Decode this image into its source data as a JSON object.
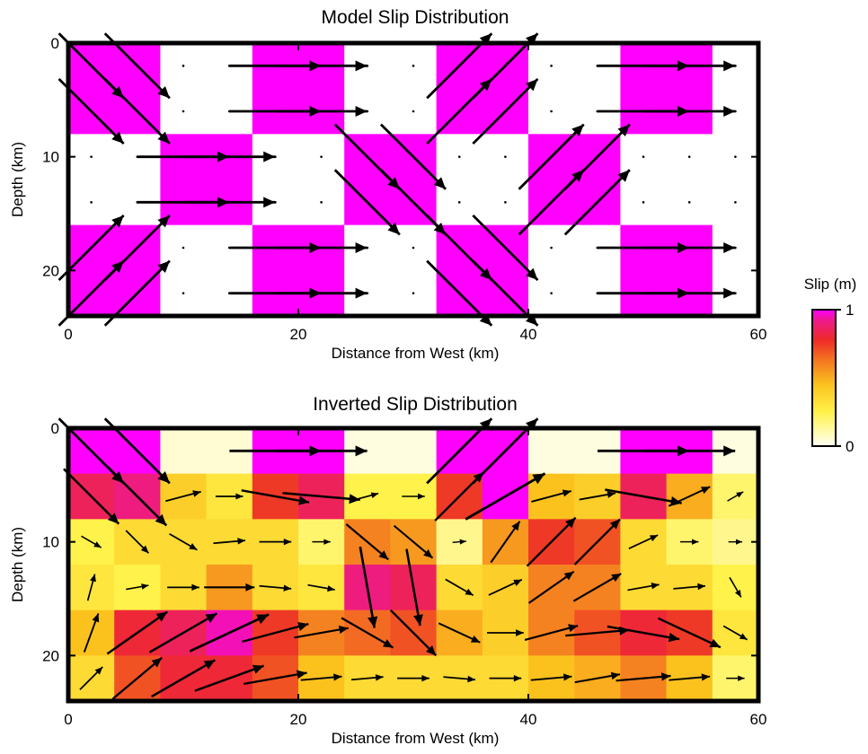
{
  "chart_data": [
    {
      "type": "heatmap",
      "title": "Model Slip Distribution",
      "xlabel": "Distance from West (km)",
      "ylabel": "Depth (km)",
      "xlim": [
        0,
        60
      ],
      "ylim": [
        0,
        24
      ],
      "xticks": [
        0,
        20,
        40,
        60
      ],
      "yticks": [
        0,
        10,
        20
      ],
      "grid": false,
      "cell_size_km": 4,
      "columns": 15,
      "rows": 6,
      "slip_m": [
        [
          1,
          1,
          0,
          0,
          1,
          1,
          0,
          0,
          1,
          1,
          0,
          0,
          1,
          1,
          0
        ],
        [
          1,
          1,
          0,
          0,
          1,
          1,
          0,
          0,
          1,
          1,
          0,
          0,
          1,
          1,
          0
        ],
        [
          0,
          0,
          1,
          1,
          0,
          0,
          1,
          1,
          0,
          0,
          1,
          1,
          0,
          0,
          0
        ],
        [
          0,
          0,
          1,
          1,
          0,
          0,
          1,
          1,
          0,
          0,
          1,
          1,
          0,
          0,
          0
        ],
        [
          1,
          1,
          0,
          0,
          1,
          1,
          0,
          0,
          1,
          1,
          0,
          0,
          1,
          1,
          0
        ],
        [
          1,
          1,
          0,
          0,
          1,
          1,
          0,
          0,
          1,
          1,
          0,
          0,
          1,
          1,
          0
        ]
      ],
      "rake_deg": [
        [
          -45,
          -45,
          0,
          0,
          0,
          0,
          0,
          0,
          45,
          45,
          0,
          0,
          0,
          0,
          0
        ],
        [
          -45,
          -45,
          0,
          0,
          0,
          0,
          0,
          0,
          45,
          45,
          0,
          0,
          0,
          0,
          0
        ],
        [
          0,
          0,
          0,
          0,
          0,
          0,
          -45,
          -45,
          0,
          0,
          45,
          45,
          0,
          0,
          0
        ],
        [
          0,
          0,
          0,
          0,
          0,
          0,
          -45,
          -45,
          0,
          0,
          45,
          45,
          0,
          0,
          0
        ],
        [
          45,
          45,
          0,
          0,
          0,
          0,
          0,
          0,
          -45,
          -45,
          0,
          0,
          0,
          0,
          0
        ],
        [
          45,
          45,
          0,
          0,
          0,
          0,
          0,
          0,
          -45,
          -45,
          0,
          0,
          0,
          0,
          0
        ]
      ]
    },
    {
      "type": "heatmap",
      "title": "Inverted Slip Distribution",
      "xlabel": "Distance from West (km)",
      "ylabel": "Depth (km)",
      "xlim": [
        0,
        60
      ],
      "ylim": [
        0,
        24
      ],
      "xticks": [
        0,
        20,
        40,
        60
      ],
      "yticks": [
        0,
        10,
        20
      ],
      "grid": false,
      "cell_size_km": 4,
      "columns": 15,
      "rows": 6,
      "slip_m": [
        [
          1,
          1,
          0.05,
          0.05,
          1,
          1,
          0.03,
          0.03,
          1,
          1,
          0.03,
          0.03,
          1,
          1,
          0.03
        ],
        [
          0.85,
          0.9,
          0.4,
          0.3,
          0.75,
          0.85,
          0.25,
          0.25,
          0.75,
          1,
          0.45,
          0.4,
          0.85,
          0.5,
          0.2
        ],
        [
          0.25,
          0.35,
          0.35,
          0.35,
          0.35,
          0.2,
          0.6,
          0.55,
          0.15,
          0.55,
          0.75,
          0.7,
          0.35,
          0.2,
          0.15
        ],
        [
          0.3,
          0.25,
          0.35,
          0.55,
          0.35,
          0.3,
          0.9,
          0.85,
          0.35,
          0.4,
          0.6,
          0.6,
          0.35,
          0.35,
          0.25
        ],
        [
          0.45,
          0.8,
          0.85,
          0.95,
          0.75,
          0.6,
          0.65,
          0.7,
          0.5,
          0.4,
          0.6,
          0.7,
          0.8,
          0.75,
          0.3
        ],
        [
          0.35,
          0.7,
          0.8,
          0.8,
          0.7,
          0.45,
          0.35,
          0.35,
          0.35,
          0.35,
          0.45,
          0.5,
          0.6,
          0.45,
          0.2
        ]
      ],
      "rake_deg": [
        [
          -45,
          -45,
          0,
          0,
          0,
          0,
          0,
          0,
          45,
          45,
          0,
          0,
          0,
          0,
          0
        ],
        [
          -45,
          -45,
          15,
          0,
          -10,
          -5,
          15,
          0,
          45,
          30,
          15,
          10,
          -10,
          25,
          30
        ],
        [
          -30,
          -45,
          -30,
          5,
          0,
          0,
          -40,
          -40,
          5,
          55,
          45,
          45,
          25,
          0,
          0
        ],
        [
          75,
          10,
          0,
          0,
          -5,
          -10,
          -80,
          -80,
          -30,
          25,
          35,
          30,
          10,
          5,
          -60
        ],
        [
          70,
          35,
          30,
          25,
          15,
          10,
          -30,
          -45,
          -25,
          0,
          15,
          5,
          -10,
          -25,
          -30
        ],
        [
          45,
          40,
          30,
          20,
          10,
          5,
          5,
          0,
          -5,
          0,
          5,
          10,
          5,
          5,
          0
        ]
      ]
    }
  ],
  "colorbar": {
    "title": "Slip (m)",
    "min_label": "0",
    "max_label": "1",
    "min": 0,
    "max": 1,
    "stops": [
      "#fffff5",
      "#fff24a",
      "#fbc21e",
      "#f47a20",
      "#ee2a28",
      "#ee1a8c",
      "#ff00ff"
    ]
  },
  "colors": {
    "model_slip": "#ff00ff",
    "model_zero": "#ffffff",
    "arrow": "#000000"
  }
}
